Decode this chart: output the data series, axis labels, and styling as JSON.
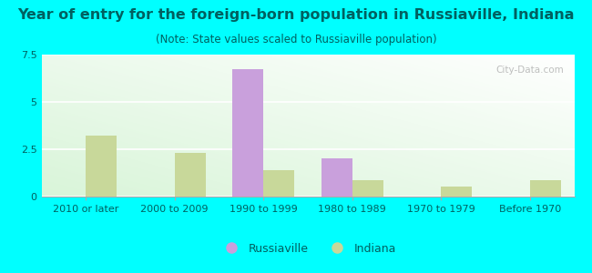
{
  "categories": [
    "2010 or later",
    "2000 to 2009",
    "1990 to 1999",
    "1980 to 1989",
    "1970 to 1979",
    "Before 1970"
  ],
  "russiaville": [
    0,
    0,
    6.75,
    2.0,
    0,
    0
  ],
  "indiana": [
    3.2,
    2.3,
    1.4,
    0.85,
    0.55,
    0.85
  ],
  "russiaville_color": "#c9a0dc",
  "indiana_color": "#c8d89a",
  "title": "Year of entry for the foreign-born population in Russiaville, Indiana",
  "subtitle": "(Note: State values scaled to Russiaville population)",
  "ylim": [
    0,
    7.5
  ],
  "yticks": [
    0,
    2.5,
    5,
    7.5
  ],
  "background_outer": "#00ffff",
  "text_color": "#006060",
  "bar_width": 0.35,
  "title_fontsize": 11.5,
  "subtitle_fontsize": 8.5,
  "tick_fontsize": 8,
  "legend_fontsize": 9
}
